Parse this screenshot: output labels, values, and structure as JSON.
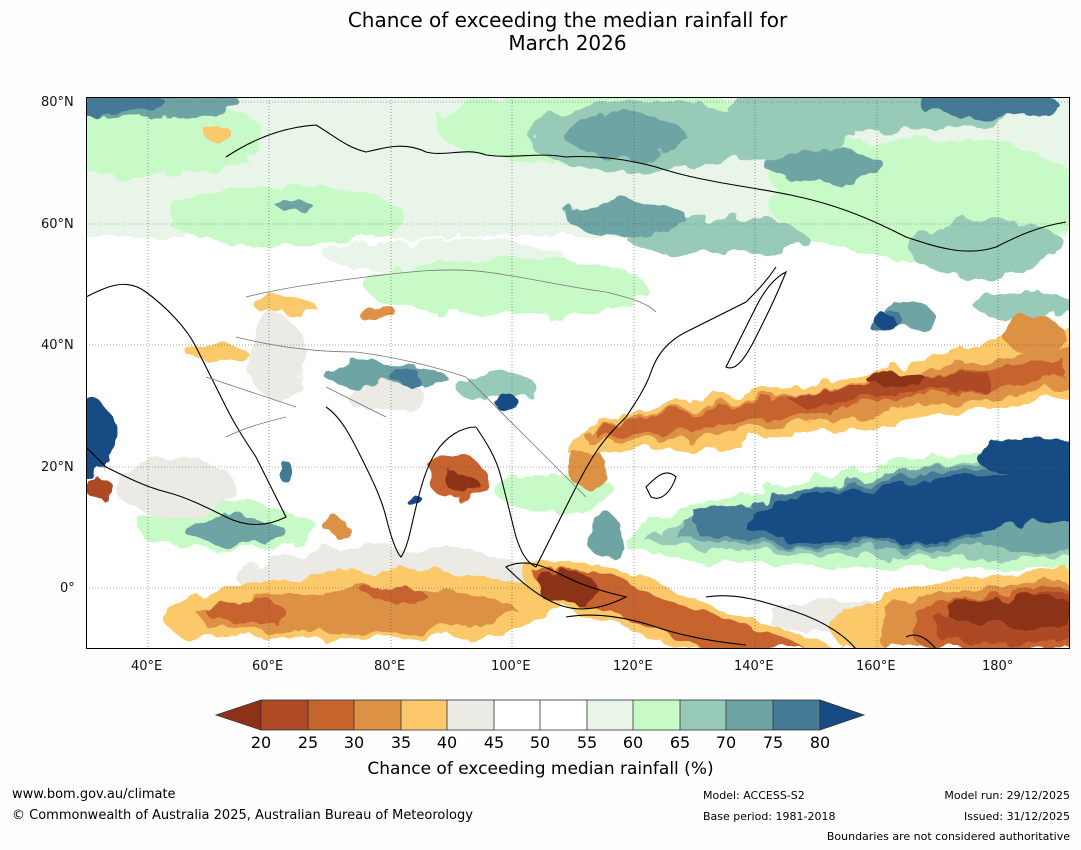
{
  "title_line1": "Chance of exceeding the median rainfall for",
  "title_line2": "March 2026",
  "map": {
    "lat_labels": [
      "80°N",
      "60°N",
      "40°N",
      "20°N",
      "0°"
    ],
    "lon_labels": [
      "40°E",
      "60°E",
      "80°E",
      "100°E",
      "120°E",
      "140°E",
      "160°E",
      "180°"
    ],
    "colors": {
      "c20": "#8c3219",
      "c25": "#ae4a26",
      "c30": "#c6642e",
      "c35": "#dd9144",
      "c40": "#fbc86b",
      "c45": "#eceae5",
      "c50": "#ffffff",
      "c55": "#ffffff",
      "c60": "#eaf5e9",
      "c65": "#c8fac8",
      "c70": "#98cbb7",
      "c75": "#6ea4a4",
      "c80": "#457a96",
      "c85": "#174b83"
    }
  },
  "colorbar": {
    "ticks": [
      "20",
      "25",
      "30",
      "35",
      "40",
      "45",
      "50",
      "55",
      "60",
      "65",
      "70",
      "75",
      "80"
    ],
    "label": "Chance of exceeding median rainfall (%)"
  },
  "footer": {
    "url": "www.bom.gov.au/climate",
    "copyright": "© Commonwealth of Australia 2025, Australian Bureau of Meteorology",
    "model": "Model: ACCESS-S2",
    "base_period": "Base period: 1981-2018",
    "model_run": "Model run: 29/12/2025",
    "issued": "Issued: 31/12/2025",
    "boundaries": "Boundaries are not considered authoritative"
  }
}
